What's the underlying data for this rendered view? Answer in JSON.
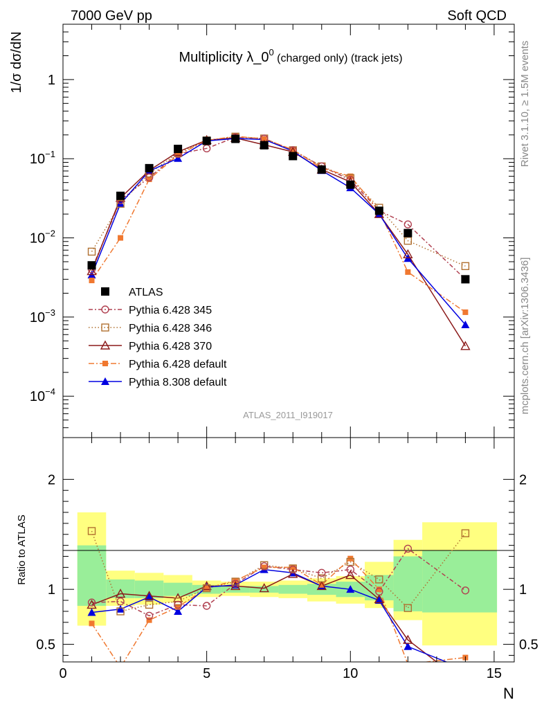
{
  "header": {
    "left": "7000 GeV pp",
    "right": "Soft QCD"
  },
  "side": {
    "rivet": "Rivet 3.1.10, ≥ 1.5M events",
    "mcplots": "mcplots.cern.ch [arXiv:1306.3436]"
  },
  "chart_data": [
    {
      "type": "line",
      "panel": "main",
      "title_main": "Multiplicity λ_0",
      "title_sup": "0",
      "title_tail": " (charged only) (track jets)",
      "ylabel": "1/σ dσ/dN",
      "analysis_label": "ATLAS_2011_I919017",
      "xlim": [
        0,
        15.7
      ],
      "ylim": [
        3e-05,
        5
      ],
      "yscale": "log",
      "y_ticks": [
        {
          "v": 1,
          "base": "1",
          "exp": ""
        },
        {
          "v": 0.1,
          "base": "10",
          "exp": "−1"
        },
        {
          "v": 0.01,
          "base": "10",
          "exp": "−2"
        },
        {
          "v": 0.001,
          "base": "10",
          "exp": "−3"
        },
        {
          "v": 0.0001,
          "base": "10",
          "exp": "−4"
        }
      ],
      "legend_position": "lower-left",
      "series": [
        {
          "name": "ATLAS",
          "color": "#000000",
          "marker": "filled-square",
          "dash": "none",
          "x": [
            1,
            2,
            3,
            4,
            5,
            6,
            7,
            8,
            9,
            10,
            11,
            12,
            14
          ],
          "y": [
            0.0045,
            0.034,
            0.076,
            0.133,
            0.168,
            0.178,
            0.148,
            0.108,
            0.073,
            0.047,
            0.022,
            0.0115,
            0.003
          ]
        },
        {
          "name": "Pythia 6.428 345",
          "color": "#b04050",
          "marker": "open-circle",
          "dash": "6,3,2,3",
          "x": [
            1,
            2,
            3,
            4,
            5,
            6,
            7,
            8,
            9,
            10,
            11,
            12,
            14
          ],
          "y": [
            0.004,
            0.03,
            0.058,
            0.115,
            0.135,
            0.187,
            0.18,
            0.128,
            0.08,
            0.054,
            0.022,
            0.0148,
            0.003
          ]
        },
        {
          "name": "Pythia 6.428 346",
          "color": "#b07030",
          "marker": "open-square",
          "dash": "1.5,3",
          "x": [
            1,
            2,
            3,
            4,
            5,
            6,
            7,
            8,
            9,
            10,
            11,
            12,
            14
          ],
          "y": [
            0.0067,
            0.027,
            0.065,
            0.118,
            0.17,
            0.19,
            0.18,
            0.128,
            0.08,
            0.057,
            0.024,
            0.0092,
            0.0044
          ]
        },
        {
          "name": "Pythia 6.428 370",
          "color": "#8b1a1a",
          "marker": "open-triangle",
          "dash": "none",
          "x": [
            1,
            2,
            3,
            4,
            5,
            6,
            7,
            8,
            9,
            10,
            11,
            12,
            14
          ],
          "y": [
            0.0038,
            0.032,
            0.071,
            0.122,
            0.172,
            0.183,
            0.15,
            0.122,
            0.073,
            0.051,
            0.02,
            0.0062,
            0.00043
          ]
        },
        {
          "name": "Pythia 6.428 default",
          "color": "#f07830",
          "marker": "filled-square-small",
          "dash": "8,3,2,3",
          "x": [
            1,
            2,
            3,
            4,
            5,
            6,
            7,
            8,
            9,
            10,
            11,
            12,
            14
          ],
          "y": [
            0.0029,
            0.01,
            0.055,
            0.112,
            0.17,
            0.192,
            0.178,
            0.13,
            0.076,
            0.06,
            0.022,
            0.0037,
            0.00115
          ]
        },
        {
          "name": "Pythia 8.308 default",
          "color": "#0000e0",
          "marker": "filled-triangle",
          "dash": "none",
          "x": [
            1,
            2,
            3,
            4,
            5,
            6,
            7,
            8,
            9,
            10,
            11,
            12,
            14
          ],
          "y": [
            0.0034,
            0.027,
            0.07,
            0.101,
            0.168,
            0.18,
            0.175,
            0.125,
            0.071,
            0.043,
            0.02,
            0.0055,
            0.0008
          ]
        }
      ]
    },
    {
      "type": "line",
      "panel": "ratio",
      "ylabel": "Ratio to ATLAS",
      "xlabel": "N",
      "xlim": [
        0,
        15.7
      ],
      "ylim": [
        0.34,
        2.38
      ],
      "y_ticks": [
        0.5,
        1,
        2
      ],
      "y_tick_labels": [
        "0.5",
        "1",
        "2"
      ],
      "x_ticks": [
        0,
        5,
        10,
        15
      ],
      "x_tick_labels": [
        "0",
        "5",
        "10",
        "15"
      ],
      "bands": [
        {
          "x0": 0.5,
          "x1": 1.5,
          "y_lo": 0.67,
          "y_hi": 1.7,
          "g_lo": 0.85,
          "g_hi": 1.4
        },
        {
          "x0": 1.5,
          "x1": 2.5,
          "y_lo": 0.85,
          "y_hi": 1.17,
          "g_lo": 0.92,
          "g_hi": 1.09
        },
        {
          "x0": 2.5,
          "x1": 3.5,
          "y_lo": 0.86,
          "y_hi": 1.15,
          "g_lo": 0.92,
          "g_hi": 1.08
        },
        {
          "x0": 3.5,
          "x1": 4.5,
          "y_lo": 0.88,
          "y_hi": 1.13,
          "g_lo": 0.94,
          "g_hi": 1.06
        },
        {
          "x0": 4.5,
          "x1": 5.5,
          "y_lo": 0.93,
          "y_hi": 1.08,
          "g_lo": 0.96,
          "g_hi": 1.04
        },
        {
          "x0": 5.5,
          "x1": 6.5,
          "y_lo": 0.94,
          "y_hi": 1.07,
          "g_lo": 0.97,
          "g_hi": 1.03
        },
        {
          "x0": 6.5,
          "x1": 7.5,
          "y_lo": 0.93,
          "y_hi": 1.07,
          "g_lo": 0.97,
          "g_hi": 1.03
        },
        {
          "x0": 7.5,
          "x1": 8.5,
          "y_lo": 0.92,
          "y_hi": 1.08,
          "g_lo": 0.96,
          "g_hi": 1.04
        },
        {
          "x0": 8.5,
          "x1": 9.5,
          "y_lo": 0.89,
          "y_hi": 1.1,
          "g_lo": 0.95,
          "g_hi": 1.05
        },
        {
          "x0": 9.5,
          "x1": 10.5,
          "y_lo": 0.87,
          "y_hi": 1.12,
          "g_lo": 0.93,
          "g_hi": 1.07
        },
        {
          "x0": 10.5,
          "x1": 11.5,
          "y_lo": 0.83,
          "y_hi": 1.25,
          "g_lo": 0.9,
          "g_hi": 1.13
        },
        {
          "x0": 11.5,
          "x1": 12.5,
          "y_lo": 0.72,
          "y_hi": 1.45,
          "g_lo": 0.8,
          "g_hi": 1.3
        },
        {
          "x0": 12.5,
          "x1": 15.1,
          "y_lo": 0.49,
          "y_hi": 1.61,
          "g_lo": 0.79,
          "g_hi": 1.35
        }
      ],
      "series": [
        {
          "name": "Pythia 6.428 345",
          "color": "#b04050",
          "marker": "open-circle",
          "dash": "6,3,2,3",
          "x": [
            1,
            2,
            3,
            4,
            5,
            6,
            7,
            8,
            9,
            10,
            11,
            12,
            14
          ],
          "y": [
            0.88,
            0.89,
            0.76,
            0.86,
            0.85,
            1.05,
            1.21,
            1.18,
            1.15,
            1.18,
            0.98,
            1.37,
            0.99
          ]
        },
        {
          "name": "Pythia 6.428 346",
          "color": "#b07030",
          "marker": "open-square",
          "dash": "1.5,3",
          "x": [
            1,
            2,
            3,
            4,
            5,
            6,
            7,
            8,
            9,
            10,
            11,
            12,
            14
          ],
          "y": [
            1.53,
            0.8,
            0.86,
            0.89,
            1.01,
            1.07,
            1.22,
            1.19,
            1.1,
            1.25,
            1.09,
            0.83,
            1.51
          ]
        },
        {
          "name": "Pythia 6.428 370",
          "color": "#8b1a1a",
          "marker": "open-triangle",
          "dash": "none",
          "x": [
            1,
            2,
            3,
            4,
            5,
            6,
            7,
            8,
            9,
            10,
            11,
            12,
            14
          ],
          "y": [
            0.86,
            0.96,
            0.94,
            0.92,
            1.03,
            1.03,
            1.01,
            1.14,
            1.03,
            1.13,
            0.91,
            0.54,
            0.14
          ]
        },
        {
          "name": "Pythia 6.428 default",
          "color": "#f07830",
          "marker": "filled-square-small",
          "dash": "8,3,2,3",
          "x": [
            1,
            2,
            3,
            4,
            5,
            6,
            7,
            8,
            9,
            10,
            11,
            12,
            14
          ],
          "y": [
            0.69,
            0.29,
            0.72,
            0.84,
            1.01,
            1.08,
            1.2,
            1.2,
            1.04,
            1.28,
            1.0,
            0.32,
            0.38
          ]
        },
        {
          "name": "Pythia 8.308 default",
          "color": "#0000e0",
          "marker": "filled-triangle",
          "dash": "none",
          "x": [
            1,
            2,
            3,
            4,
            5,
            6,
            7,
            8,
            9,
            10,
            11,
            12,
            14
          ],
          "y": [
            0.79,
            0.82,
            0.93,
            0.8,
            1.02,
            1.04,
            1.18,
            1.15,
            1.03,
            1.0,
            0.9,
            0.48,
            0.27
          ]
        }
      ]
    }
  ]
}
